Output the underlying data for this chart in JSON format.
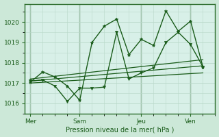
{
  "bg_color": "#cce8d8",
  "plot_bg_color": "#d8f0e8",
  "grid_color": "#b8d8c8",
  "line_color": "#1a5c1a",
  "text_color": "#1a5c1a",
  "spine_color": "#2a6c2a",
  "xlabel": "Pression niveau de la mer( hPa )",
  "xtick_labels": [
    "Mer",
    "Sam",
    "Jeu",
    "Ven"
  ],
  "xtick_positions": [
    0,
    4,
    9,
    13
  ],
  "ytick_labels": [
    "1016",
    "1017",
    "1018",
    "1019",
    "1020"
  ],
  "ytick_positions": [
    1016,
    1017,
    1018,
    1019,
    1020
  ],
  "ylim": [
    1015.5,
    1020.9
  ],
  "xlim": [
    -0.5,
    15.0
  ],
  "main_line_x": [
    0,
    1,
    2,
    3,
    4,
    5,
    6,
    7,
    8,
    9,
    10,
    11,
    12,
    13,
    14
  ],
  "main_line_y": [
    1017.05,
    1017.55,
    1017.3,
    1016.85,
    1016.15,
    1019.0,
    1019.8,
    1020.15,
    1018.4,
    1019.15,
    1018.85,
    1020.55,
    1019.55,
    1020.05,
    1017.8
  ],
  "lower_line_x": [
    0,
    1,
    2,
    3,
    4,
    5,
    6,
    7,
    8,
    9,
    10,
    11,
    12,
    13,
    14
  ],
  "lower_line_y": [
    1017.1,
    1017.15,
    1016.85,
    1016.1,
    1016.75,
    1016.75,
    1016.8,
    1019.5,
    1017.2,
    1017.5,
    1017.75,
    1019.0,
    1019.5,
    1018.9,
    1017.8
  ],
  "trend1_x": [
    0,
    14
  ],
  "trend1_y": [
    1017.0,
    1017.5
  ],
  "trend2_x": [
    0,
    14
  ],
  "trend2_y": [
    1017.1,
    1017.85
  ],
  "trend3_x": [
    0,
    14
  ],
  "trend3_y": [
    1017.2,
    1018.15
  ],
  "vline_x": [
    0,
    4,
    9,
    13
  ]
}
